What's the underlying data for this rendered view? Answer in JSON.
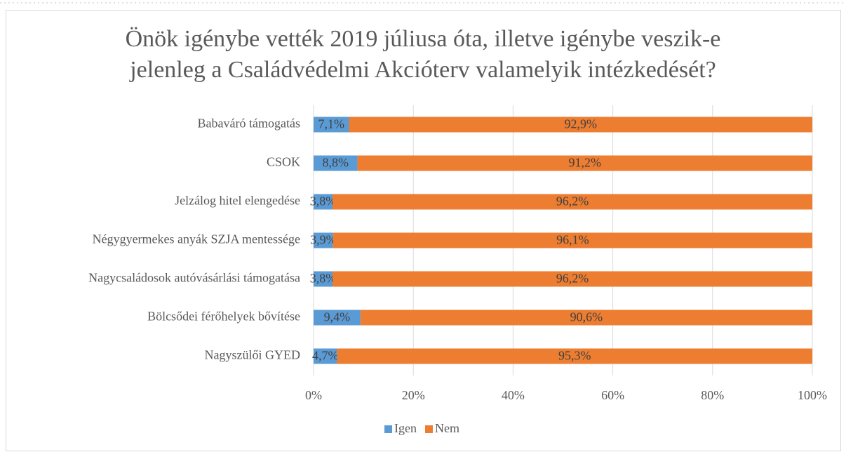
{
  "chart_data": {
    "type": "stacked-bar-horizontal",
    "title": [
      "Önök igénybe vették 2019 júliusa óta, illetve igénybe veszik-e",
      "jelenleg a Családvédelmi Akcióterv valamelyik intézkedését?"
    ],
    "categories": [
      "Babaváró támogatás",
      "CSOK",
      "Jelzálog hitel elengedése",
      "Négygyermekes anyák SZJA mentessége",
      "Nagycsaládosok autóvásárlási támogatása",
      "Bölcsődei férőhelyek bővítése",
      "Nagyszülői GYED"
    ],
    "series": [
      {
        "name": "Igen",
        "color": "#5b9bd5",
        "values": [
          7.1,
          8.8,
          3.8,
          3.9,
          3.8,
          9.4,
          4.7
        ],
        "value_labels": [
          "7,1%",
          "8,8%",
          "3,8%",
          "3,9%",
          "3,8%",
          "9,4%",
          "4,7%"
        ]
      },
      {
        "name": "Nem",
        "color": "#ed7d31",
        "values": [
          92.9,
          91.2,
          96.2,
          96.1,
          96.2,
          90.6,
          95.3
        ],
        "value_labels": [
          "92,9%",
          "91,2%",
          "96,2%",
          "96,1%",
          "96,2%",
          "90,6%",
          "95,3%"
        ]
      }
    ],
    "xlim": [
      0,
      100
    ],
    "xticks": [
      {
        "value": 0,
        "label": "0%"
      },
      {
        "value": 20,
        "label": "20%"
      },
      {
        "value": 40,
        "label": "40%"
      },
      {
        "value": 60,
        "label": "60%"
      },
      {
        "value": 80,
        "label": "80%"
      },
      {
        "value": 100,
        "label": "100%"
      }
    ],
    "grid": true,
    "legend": "bottom"
  }
}
